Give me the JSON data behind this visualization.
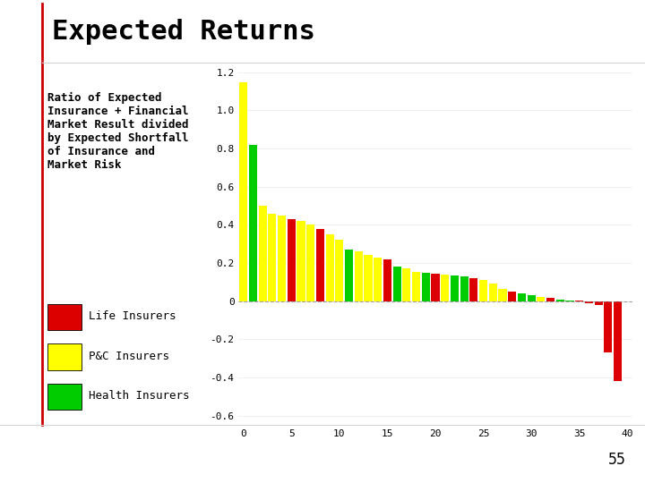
{
  "title": "Expected Returns",
  "subtitle": "Ratio of Expected\nInsurance + Financial\nMarket Result divided\nby Expected Shortfall\nof Insurance and\nMarket Risk",
  "values": [
    1.15,
    0.82,
    0.5,
    0.46,
    0.45,
    0.43,
    0.42,
    0.4,
    0.38,
    0.35,
    0.32,
    0.27,
    0.26,
    0.24,
    0.23,
    0.22,
    0.18,
    0.17,
    0.155,
    0.15,
    0.145,
    0.14,
    0.135,
    0.13,
    0.12,
    0.11,
    0.09,
    0.065,
    0.05,
    0.04,
    0.03,
    0.02,
    0.015,
    0.01,
    0.005,
    0.003,
    -0.01,
    -0.02,
    -0.27,
    -0.42
  ],
  "colors": [
    "yellow",
    "green",
    "yellow",
    "yellow",
    "yellow",
    "red",
    "yellow",
    "yellow",
    "red",
    "yellow",
    "yellow",
    "green",
    "yellow",
    "yellow",
    "yellow",
    "red",
    "green",
    "yellow",
    "yellow",
    "green",
    "red",
    "yellow",
    "green",
    "green",
    "red",
    "yellow",
    "yellow",
    "yellow",
    "red",
    "green",
    "green",
    "yellow",
    "red",
    "green",
    "green",
    "red",
    "red",
    "red",
    "red",
    "red"
  ],
  "bar_colors": {
    "Life": "#dd0000",
    "P&C": "#ffff00",
    "Health": "#00cc00"
  },
  "ylim": [
    -0.65,
    1.25
  ],
  "yticks": [
    -0.6,
    -0.4,
    -0.2,
    0,
    0.2,
    0.4,
    0.6,
    0.8,
    1.0,
    1.2
  ],
  "xticks": [
    0,
    5,
    10,
    15,
    20,
    25,
    30,
    35,
    40
  ],
  "legend_labels": [
    "Life Insurers",
    "P&C Insurers",
    "Health Insurers"
  ],
  "legend_colors": [
    "#dd0000",
    "#ffff00",
    "#00cc00"
  ],
  "title_fontsize": 22,
  "subtitle_fontsize": 9,
  "axis_fontsize": 8,
  "background_color": "#ffffff",
  "border_left_color": "#cc0000",
  "page_number": "55"
}
